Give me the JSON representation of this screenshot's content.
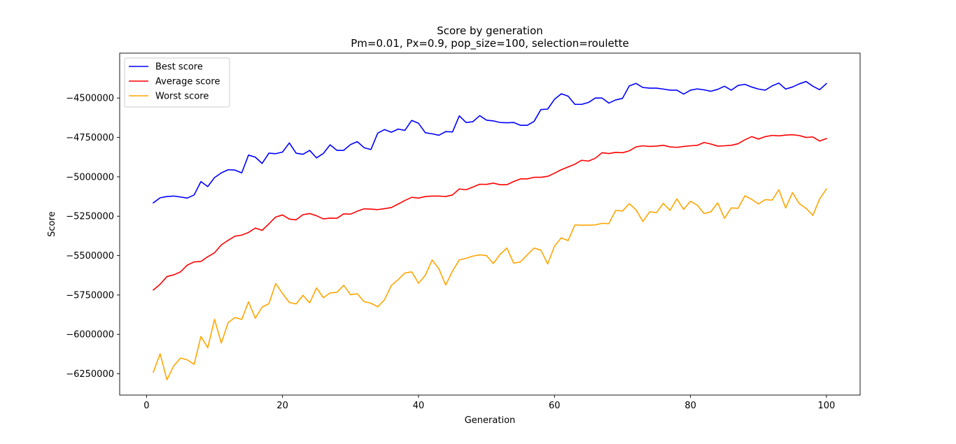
{
  "chart_data": {
    "type": "line",
    "title": "Score by generation",
    "subtitle": "Pm=0.01, Px=0.9, pop_size=100, selection=roulette",
    "xlabel": "Generation",
    "ylabel": "Score",
    "xlim": [
      -3.95,
      104.95
    ],
    "ylim": [
      -6385000,
      -4215000
    ],
    "xticks": [
      0,
      20,
      40,
      60,
      80,
      100
    ],
    "yticks": [
      -6250000,
      -6000000,
      -5750000,
      -5500000,
      -5250000,
      -5000000,
      -4750000,
      -4500000
    ],
    "xtick_labels": [
      "0",
      "20",
      "40",
      "60",
      "80",
      "100"
    ],
    "ytick_labels": [
      "−6250000",
      "−6000000",
      "−5750000",
      "−5500000",
      "−5250000",
      "−5000000",
      "−4750000",
      "−4500000"
    ],
    "grid": false,
    "legend": "top-left",
    "x": [
      1,
      2,
      3,
      4,
      5,
      6,
      7,
      8,
      9,
      10,
      11,
      12,
      13,
      14,
      15,
      16,
      17,
      18,
      19,
      20,
      21,
      22,
      23,
      24,
      25,
      26,
      27,
      28,
      29,
      30,
      31,
      32,
      33,
      34,
      35,
      36,
      37,
      38,
      39,
      40,
      41,
      42,
      43,
      44,
      45,
      46,
      47,
      48,
      49,
      50,
      51,
      52,
      53,
      54,
      55,
      56,
      57,
      58,
      59,
      60,
      61,
      62,
      63,
      64,
      65,
      66,
      67,
      68,
      69,
      70,
      71,
      72,
      73,
      74,
      75,
      76,
      77,
      78,
      79,
      80,
      81,
      82,
      83,
      84,
      85,
      86,
      87,
      88,
      89,
      90,
      91,
      92,
      93,
      94,
      95,
      96,
      97,
      98,
      99,
      100
    ],
    "series": [
      {
        "name": "Best score",
        "color": "#0000ff",
        "values": [
          -5165000,
          -5133000,
          -5125000,
          -5122000,
          -5128000,
          -5135000,
          -5115000,
          -5030000,
          -5062000,
          -5005000,
          -4975000,
          -4955000,
          -4957000,
          -4975000,
          -4862000,
          -4875000,
          -4915000,
          -4850000,
          -4853000,
          -4843000,
          -4785000,
          -4850000,
          -4857000,
          -4832000,
          -4880000,
          -4852000,
          -4797000,
          -4832000,
          -4832000,
          -4795000,
          -4777000,
          -4815000,
          -4827000,
          -4723000,
          -4700000,
          -4717000,
          -4697000,
          -4705000,
          -4642000,
          -4660000,
          -4720000,
          -4727000,
          -4736000,
          -4713000,
          -4715000,
          -4613000,
          -4655000,
          -4650000,
          -4612000,
          -4640000,
          -4645000,
          -4655000,
          -4657000,
          -4655000,
          -4673000,
          -4673000,
          -4648000,
          -4573000,
          -4570000,
          -4508000,
          -4473000,
          -4488000,
          -4540000,
          -4540000,
          -4528000,
          -4500000,
          -4500000,
          -4532000,
          -4512000,
          -4502000,
          -4423000,
          -4407000,
          -4433000,
          -4437000,
          -4437000,
          -4443000,
          -4450000,
          -4450000,
          -4475000,
          -4450000,
          -4442000,
          -4448000,
          -4457000,
          -4445000,
          -4425000,
          -4450000,
          -4420000,
          -4413000,
          -4430000,
          -4443000,
          -4450000,
          -4423000,
          -4405000,
          -4443000,
          -4430000,
          -4410000,
          -4395000,
          -4425000,
          -4447000,
          -4408000
        ]
      },
      {
        "name": "Average score",
        "color": "#ff0000",
        "values": [
          -5718000,
          -5682000,
          -5633000,
          -5622000,
          -5603000,
          -5560000,
          -5540000,
          -5537000,
          -5507000,
          -5482000,
          -5432000,
          -5403000,
          -5377000,
          -5370000,
          -5353000,
          -5325000,
          -5340000,
          -5298000,
          -5255000,
          -5242000,
          -5268000,
          -5273000,
          -5240000,
          -5233000,
          -5247000,
          -5267000,
          -5262000,
          -5263000,
          -5235000,
          -5237000,
          -5218000,
          -5203000,
          -5205000,
          -5208000,
          -5202000,
          -5195000,
          -5173000,
          -5150000,
          -5130000,
          -5135000,
          -5125000,
          -5122000,
          -5122000,
          -5125000,
          -5115000,
          -5077000,
          -5082000,
          -5065000,
          -5047000,
          -5048000,
          -5040000,
          -5050000,
          -5050000,
          -5030000,
          -5013000,
          -5013000,
          -5003000,
          -5003000,
          -4997000,
          -4977000,
          -4955000,
          -4937000,
          -4920000,
          -4895000,
          -4900000,
          -4882000,
          -4847000,
          -4852000,
          -4845000,
          -4847000,
          -4835000,
          -4810000,
          -4803000,
          -4807000,
          -4805000,
          -4800000,
          -4810000,
          -4813000,
          -4807000,
          -4803000,
          -4800000,
          -4782000,
          -4792000,
          -4805000,
          -4803000,
          -4800000,
          -4790000,
          -4765000,
          -4745000,
          -4760000,
          -4745000,
          -4737000,
          -4740000,
          -4735000,
          -4733000,
          -4738000,
          -4750000,
          -4747000,
          -4773000,
          -4757000
        ]
      },
      {
        "name": "Worst score",
        "color": "#ffa500",
        "values": [
          -6240000,
          -6123000,
          -6288000,
          -6200000,
          -6150000,
          -6162000,
          -6190000,
          -6013000,
          -6085000,
          -5905000,
          -6055000,
          -5925000,
          -5893000,
          -5905000,
          -5793000,
          -5897000,
          -5827000,
          -5805000,
          -5677000,
          -5740000,
          -5797000,
          -5807000,
          -5752000,
          -5800000,
          -5705000,
          -5767000,
          -5737000,
          -5733000,
          -5688000,
          -5748000,
          -5742000,
          -5792000,
          -5802000,
          -5825000,
          -5780000,
          -5690000,
          -5653000,
          -5610000,
          -5603000,
          -5675000,
          -5625000,
          -5528000,
          -5583000,
          -5687000,
          -5598000,
          -5527000,
          -5517000,
          -5503000,
          -5495000,
          -5500000,
          -5550000,
          -5492000,
          -5452000,
          -5548000,
          -5540000,
          -5495000,
          -5452000,
          -5465000,
          -5553000,
          -5440000,
          -5387000,
          -5405000,
          -5305000,
          -5307000,
          -5307000,
          -5305000,
          -5295000,
          -5297000,
          -5213000,
          -5217000,
          -5170000,
          -5210000,
          -5283000,
          -5222000,
          -5227000,
          -5168000,
          -5213000,
          -5140000,
          -5207000,
          -5155000,
          -5180000,
          -5233000,
          -5222000,
          -5165000,
          -5263000,
          -5197000,
          -5200000,
          -5120000,
          -5143000,
          -5172000,
          -5145000,
          -5148000,
          -5082000,
          -5198000,
          -5100000,
          -5170000,
          -5200000,
          -5245000,
          -5140000,
          -5077000
        ]
      }
    ]
  }
}
